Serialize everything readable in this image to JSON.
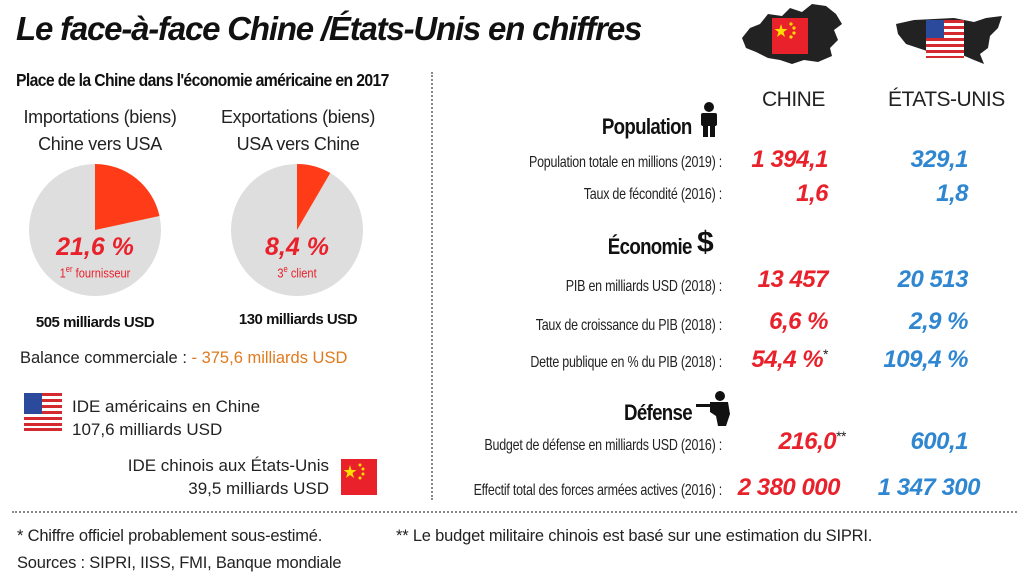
{
  "title": "Le face-à-face Chine /États-Unis en chiffres",
  "left": {
    "subtitle": "Place de la Chine dans l'économie américaine en 2017",
    "pies": [
      {
        "head1": "Importations (biens)",
        "head2": "Chine vers USA",
        "pct": "21,6 %",
        "note_pre": "1",
        "note_sup": "er",
        "note_post": " fournisseur",
        "amount": "505 milliards USD"
      },
      {
        "head1": "Exportations (biens)",
        "head2": "USA vers Chine",
        "pct": "8,4 %",
        "note_pre": "3",
        "note_sup": "e",
        "note_post": " client",
        "amount": "130 milliards USD"
      }
    ],
    "balance_label": "Balance commerciale :",
    "balance_value": "- 375,6 milliards USD",
    "ide_us_line1": "IDE américains en Chine",
    "ide_us_line2": "107,6 milliards USD",
    "ide_cn_line1": "IDE chinois aux États-Unis",
    "ide_cn_line2": "39,5 milliards USD"
  },
  "right": {
    "col_cn": "CHINE",
    "col_us": "ÉTATS-UNIS",
    "sections": {
      "population": "Population",
      "economie": "Économie",
      "defense": "Défense"
    },
    "rows": [
      {
        "label": "Population totale en millions (2019) :",
        "cn": "1 394,1",
        "us": "329,1"
      },
      {
        "label": "Taux de fécondité (2016) :",
        "cn": "1,6",
        "us": "1,8"
      },
      {
        "label": "PIB en milliards USD (2018) :",
        "cn": "13 457",
        "us": "20 513"
      },
      {
        "label": "Taux de croissance du PIB (2018) :",
        "cn": "6,6 %",
        "us": "2,9 %"
      },
      {
        "label": "Dette publique en % du PIB (2018) :",
        "cn": "54,4 %",
        "cn_mark": "*",
        "us": "109,4 %"
      },
      {
        "label": "Budget de défense en milliards USD (2016) :",
        "cn": "216,0",
        "cn_mark": "**",
        "us": "600,1"
      },
      {
        "label": "Effectif total des forces armées actives (2016) :",
        "cn": "2 380 000",
        "us": "1 347 300"
      }
    ]
  },
  "footer": {
    "note1": "* Chiffre officiel probablement sous-estimé.",
    "note2": "** Le budget militaire chinois est basé sur une estimation du SIPRI.",
    "sources": "Sources : SIPRI, IISS, FMI, Banque mondiale"
  },
  "colors": {
    "red": "#e8212b",
    "blue": "#2f86d1",
    "orange": "#e07a1e",
    "pie_bg": "#dedede"
  },
  "chart_data": [
    {
      "type": "pie",
      "title": "Importations (biens) Chine vers USA",
      "values": [
        21.6,
        78.4
      ],
      "labels": [
        "Chine",
        ""
      ],
      "colors": [
        "#ff3c17",
        "#dedede"
      ]
    },
    {
      "type": "pie",
      "title": "Exportations (biens) USA vers Chine",
      "values": [
        8.4,
        91.6
      ],
      "labels": [
        "Chine",
        ""
      ],
      "colors": [
        "#ff3c17",
        "#dedede"
      ]
    }
  ]
}
